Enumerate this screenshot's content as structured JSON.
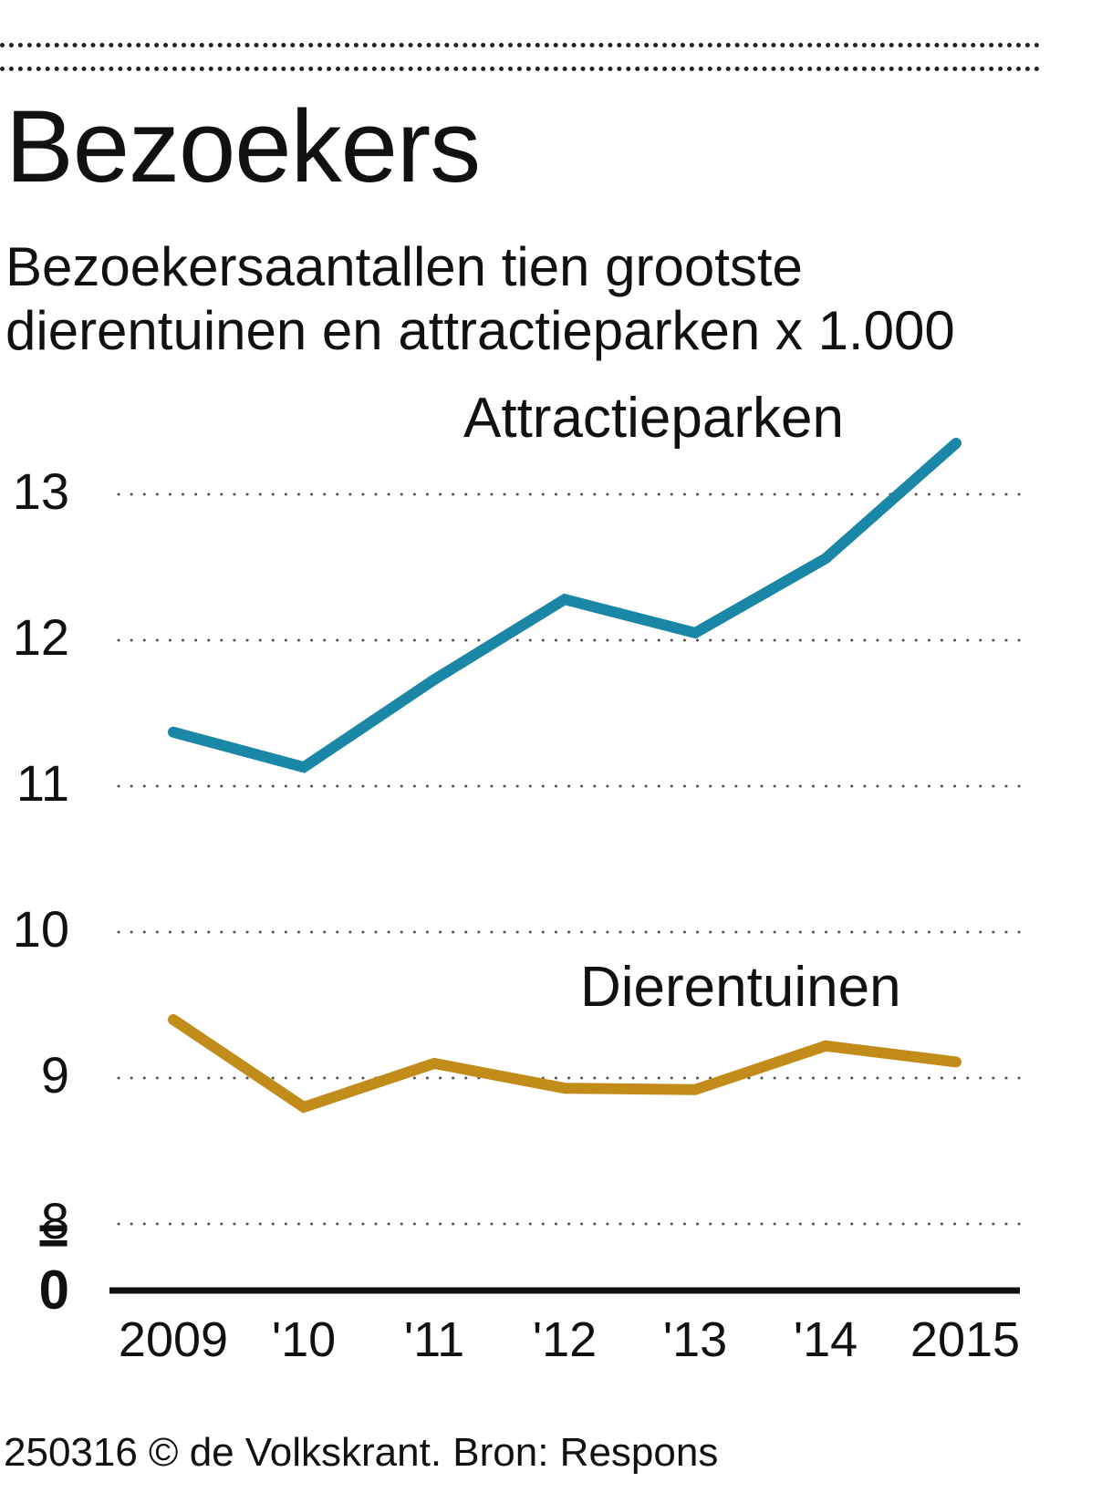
{
  "header": {
    "title": "Bezoekers",
    "subtitle_line1": "Bezoekersaantallen tien grootste",
    "subtitle_line2": "dierentuinen en attractieparken x 1.000"
  },
  "footer": {
    "credit": "250316 © de Volkskrant. Bron: Respons"
  },
  "chart_data": {
    "type": "line",
    "title": "Bezoekers",
    "subtitle": "Bezoekersaantallen tien grootste dierentuinen en attractieparken x 1.000",
    "categories": [
      "2009",
      "'10",
      "'11",
      "'12",
      "'13",
      "'14",
      "2015"
    ],
    "y_ticks": [
      "13",
      "12",
      "11",
      "10",
      "9",
      "8"
    ],
    "y_tick_values": [
      13,
      12,
      11,
      10,
      9,
      8
    ],
    "y_zero_label": "0",
    "y_break_symbol": "=",
    "ylim": [
      7.7,
      13.4
    ],
    "y_axis_break": true,
    "grid": "dotted horizontal",
    "series": [
      {
        "name": "Attractieparken",
        "color": "#1a87a6",
        "values": [
          11.37,
          11.13,
          11.73,
          12.28,
          12.05,
          12.56,
          13.35
        ]
      },
      {
        "name": "Dierentuinen",
        "color": "#c28c1a",
        "values": [
          9.4,
          8.8,
          9.1,
          8.93,
          8.92,
          9.22,
          9.11
        ]
      }
    ]
  }
}
